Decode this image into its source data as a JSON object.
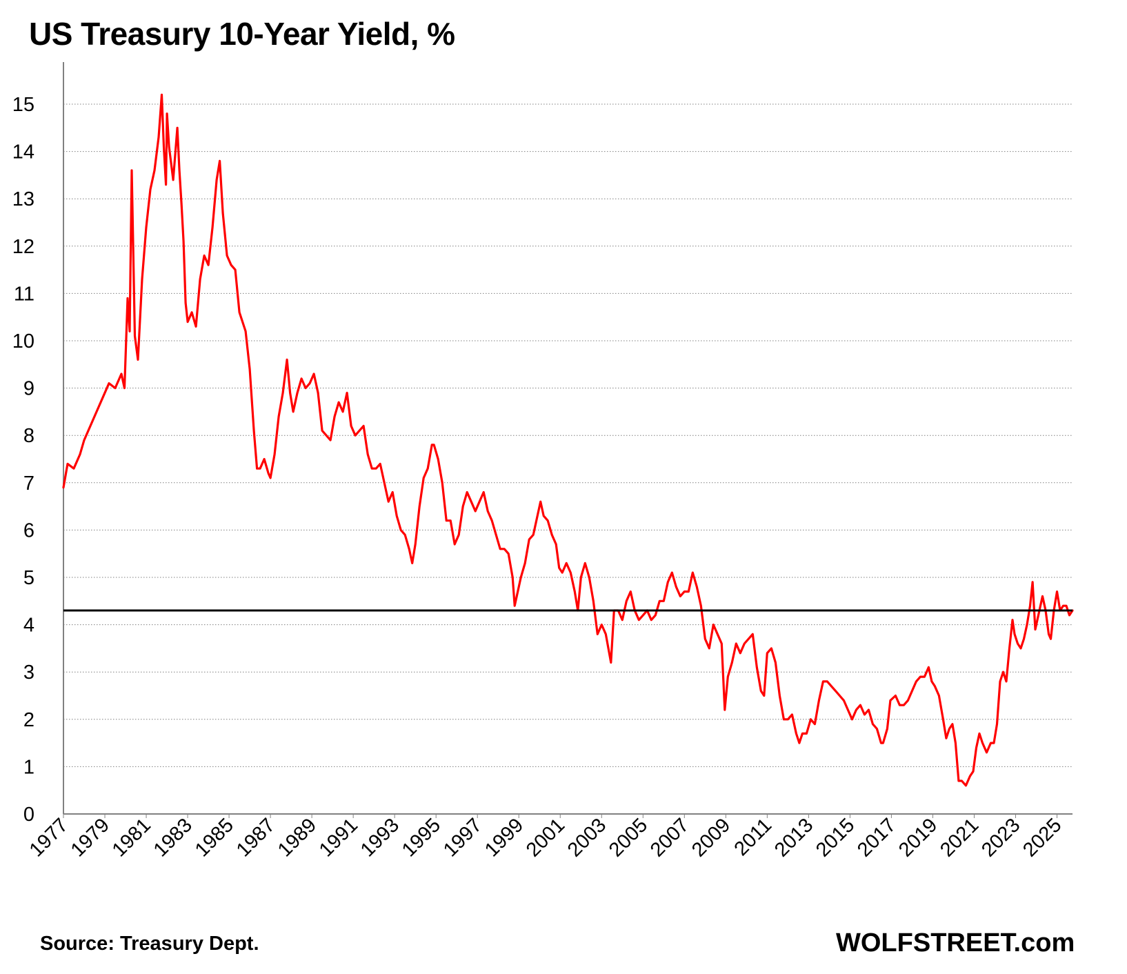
{
  "title": "US Treasury 10-Year Yield, %",
  "source": "Source: Treasury Dept.",
  "brand": "WOLFSTREET.com",
  "colors": {
    "series": "#ff0000",
    "reference_line": "#000000",
    "grid": "#7f7f7f",
    "axis": "#808080"
  },
  "chart_data": {
    "type": "line",
    "title": "US Treasury 10-Year Yield, %",
    "xlabel": "",
    "ylabel": "",
    "xlim": [
      1977,
      2025.75
    ],
    "ylim": [
      0,
      15.8
    ],
    "y_ticks": [
      0,
      1,
      2,
      3,
      4,
      5,
      6,
      7,
      8,
      9,
      10,
      11,
      12,
      13,
      14,
      15
    ],
    "x_ticks": [
      1977,
      1979,
      1981,
      1983,
      1985,
      1987,
      1989,
      1991,
      1993,
      1995,
      1997,
      1999,
      2001,
      2003,
      2005,
      2007,
      2009,
      2011,
      2013,
      2015,
      2017,
      2019,
      2021,
      2023,
      2025
    ],
    "grid": "horizontal dotted",
    "legend": "none",
    "reference_line": {
      "value": 4.3
    },
    "series": [
      {
        "color": "#ff0000",
        "points": [
          [
            1977.0,
            6.9
          ],
          [
            1977.2,
            7.4
          ],
          [
            1977.5,
            7.3
          ],
          [
            1977.8,
            7.6
          ],
          [
            1978.0,
            7.9
          ],
          [
            1978.3,
            8.2
          ],
          [
            1978.6,
            8.5
          ],
          [
            1978.9,
            8.8
          ],
          [
            1979.2,
            9.1
          ],
          [
            1979.5,
            9.0
          ],
          [
            1979.8,
            9.3
          ],
          [
            1979.95,
            9.0
          ],
          [
            1980.1,
            10.9
          ],
          [
            1980.2,
            10.2
          ],
          [
            1980.3,
            13.6
          ],
          [
            1980.45,
            10.1
          ],
          [
            1980.6,
            9.6
          ],
          [
            1980.8,
            11.3
          ],
          [
            1981.0,
            12.4
          ],
          [
            1981.2,
            13.2
          ],
          [
            1981.4,
            13.6
          ],
          [
            1981.6,
            14.3
          ],
          [
            1981.75,
            15.2
          ],
          [
            1981.85,
            14.1
          ],
          [
            1981.95,
            13.3
          ],
          [
            1982.0,
            14.8
          ],
          [
            1982.1,
            14.1
          ],
          [
            1982.3,
            13.4
          ],
          [
            1982.5,
            14.5
          ],
          [
            1982.6,
            13.6
          ],
          [
            1982.7,
            12.9
          ],
          [
            1982.8,
            12.1
          ],
          [
            1982.9,
            10.8
          ],
          [
            1983.0,
            10.4
          ],
          [
            1983.2,
            10.6
          ],
          [
            1983.4,
            10.3
          ],
          [
            1983.6,
            11.3
          ],
          [
            1983.8,
            11.8
          ],
          [
            1984.0,
            11.6
          ],
          [
            1984.2,
            12.4
          ],
          [
            1984.4,
            13.4
          ],
          [
            1984.55,
            13.8
          ],
          [
            1984.7,
            12.7
          ],
          [
            1984.9,
            11.8
          ],
          [
            1985.1,
            11.6
          ],
          [
            1985.3,
            11.5
          ],
          [
            1985.5,
            10.6
          ],
          [
            1985.8,
            10.2
          ],
          [
            1986.0,
            9.4
          ],
          [
            1986.2,
            8.1
          ],
          [
            1986.35,
            7.3
          ],
          [
            1986.5,
            7.3
          ],
          [
            1986.7,
            7.5
          ],
          [
            1986.9,
            7.2
          ],
          [
            1987.0,
            7.1
          ],
          [
            1987.2,
            7.6
          ],
          [
            1987.4,
            8.4
          ],
          [
            1987.6,
            8.9
          ],
          [
            1987.8,
            9.6
          ],
          [
            1987.95,
            8.9
          ],
          [
            1988.1,
            8.5
          ],
          [
            1988.3,
            8.9
          ],
          [
            1988.5,
            9.2
          ],
          [
            1988.7,
            9.0
          ],
          [
            1988.9,
            9.1
          ],
          [
            1989.1,
            9.3
          ],
          [
            1989.3,
            8.9
          ],
          [
            1989.5,
            8.1
          ],
          [
            1989.7,
            8.0
          ],
          [
            1989.9,
            7.9
          ],
          [
            1990.1,
            8.4
          ],
          [
            1990.3,
            8.7
          ],
          [
            1990.5,
            8.5
          ],
          [
            1990.7,
            8.9
          ],
          [
            1990.9,
            8.2
          ],
          [
            1991.1,
            8.0
          ],
          [
            1991.3,
            8.1
          ],
          [
            1991.5,
            8.2
          ],
          [
            1991.7,
            7.6
          ],
          [
            1991.9,
            7.3
          ],
          [
            1992.1,
            7.3
          ],
          [
            1992.3,
            7.4
          ],
          [
            1992.5,
            7.0
          ],
          [
            1992.7,
            6.6
          ],
          [
            1992.9,
            6.8
          ],
          [
            1993.1,
            6.3
          ],
          [
            1993.3,
            6.0
          ],
          [
            1993.5,
            5.9
          ],
          [
            1993.7,
            5.6
          ],
          [
            1993.85,
            5.3
          ],
          [
            1994.0,
            5.7
          ],
          [
            1994.2,
            6.5
          ],
          [
            1994.4,
            7.1
          ],
          [
            1994.6,
            7.3
          ],
          [
            1994.8,
            7.8
          ],
          [
            1994.9,
            7.8
          ],
          [
            1995.1,
            7.5
          ],
          [
            1995.3,
            7.0
          ],
          [
            1995.5,
            6.2
          ],
          [
            1995.7,
            6.2
          ],
          [
            1995.9,
            5.7
          ],
          [
            1996.1,
            5.9
          ],
          [
            1996.3,
            6.5
          ],
          [
            1996.5,
            6.8
          ],
          [
            1996.7,
            6.6
          ],
          [
            1996.9,
            6.4
          ],
          [
            1997.1,
            6.6
          ],
          [
            1997.3,
            6.8
          ],
          [
            1997.5,
            6.4
          ],
          [
            1997.7,
            6.2
          ],
          [
            1997.9,
            5.9
          ],
          [
            1998.1,
            5.6
          ],
          [
            1998.3,
            5.6
          ],
          [
            1998.5,
            5.5
          ],
          [
            1998.7,
            5.0
          ],
          [
            1998.8,
            4.4
          ],
          [
            1998.95,
            4.7
          ],
          [
            1999.1,
            5.0
          ],
          [
            1999.3,
            5.3
          ],
          [
            1999.5,
            5.8
          ],
          [
            1999.7,
            5.9
          ],
          [
            1999.9,
            6.3
          ],
          [
            2000.05,
            6.6
          ],
          [
            2000.2,
            6.3
          ],
          [
            2000.4,
            6.2
          ],
          [
            2000.6,
            5.9
          ],
          [
            2000.8,
            5.7
          ],
          [
            2000.95,
            5.2
          ],
          [
            2001.1,
            5.1
          ],
          [
            2001.3,
            5.3
          ],
          [
            2001.5,
            5.1
          ],
          [
            2001.7,
            4.7
          ],
          [
            2001.85,
            4.3
          ],
          [
            2002.0,
            5.0
          ],
          [
            2002.2,
            5.3
          ],
          [
            2002.4,
            5.0
          ],
          [
            2002.6,
            4.5
          ],
          [
            2002.8,
            3.8
          ],
          [
            2003.0,
            4.0
          ],
          [
            2003.2,
            3.8
          ],
          [
            2003.45,
            3.2
          ],
          [
            2003.6,
            4.3
          ],
          [
            2003.8,
            4.3
          ],
          [
            2004.0,
            4.1
          ],
          [
            2004.2,
            4.5
          ],
          [
            2004.4,
            4.7
          ],
          [
            2004.6,
            4.3
          ],
          [
            2004.8,
            4.1
          ],
          [
            2005.0,
            4.2
          ],
          [
            2005.2,
            4.3
          ],
          [
            2005.4,
            4.1
          ],
          [
            2005.6,
            4.2
          ],
          [
            2005.8,
            4.5
          ],
          [
            2006.0,
            4.5
          ],
          [
            2006.2,
            4.9
          ],
          [
            2006.4,
            5.1
          ],
          [
            2006.6,
            4.8
          ],
          [
            2006.8,
            4.6
          ],
          [
            2007.0,
            4.7
          ],
          [
            2007.2,
            4.7
          ],
          [
            2007.4,
            5.1
          ],
          [
            2007.6,
            4.8
          ],
          [
            2007.8,
            4.4
          ],
          [
            2008.0,
            3.7
          ],
          [
            2008.2,
            3.5
          ],
          [
            2008.4,
            4.0
          ],
          [
            2008.6,
            3.8
          ],
          [
            2008.8,
            3.6
          ],
          [
            2008.95,
            2.2
          ],
          [
            2009.1,
            2.9
          ],
          [
            2009.3,
            3.2
          ],
          [
            2009.5,
            3.6
          ],
          [
            2009.7,
            3.4
          ],
          [
            2009.9,
            3.6
          ],
          [
            2010.1,
            3.7
          ],
          [
            2010.3,
            3.8
          ],
          [
            2010.5,
            3.1
          ],
          [
            2010.7,
            2.6
          ],
          [
            2010.85,
            2.5
          ],
          [
            2011.0,
            3.4
          ],
          [
            2011.2,
            3.5
          ],
          [
            2011.4,
            3.2
          ],
          [
            2011.6,
            2.5
          ],
          [
            2011.8,
            2.0
          ],
          [
            2012.0,
            2.0
          ],
          [
            2012.2,
            2.1
          ],
          [
            2012.4,
            1.7
          ],
          [
            2012.55,
            1.5
          ],
          [
            2012.7,
            1.7
          ],
          [
            2012.9,
            1.7
          ],
          [
            2013.1,
            2.0
          ],
          [
            2013.3,
            1.9
          ],
          [
            2013.5,
            2.4
          ],
          [
            2013.7,
            2.8
          ],
          [
            2013.9,
            2.8
          ],
          [
            2014.1,
            2.7
          ],
          [
            2014.3,
            2.6
          ],
          [
            2014.5,
            2.5
          ],
          [
            2014.7,
            2.4
          ],
          [
            2014.9,
            2.2
          ],
          [
            2015.1,
            2.0
          ],
          [
            2015.3,
            2.2
          ],
          [
            2015.5,
            2.3
          ],
          [
            2015.7,
            2.1
          ],
          [
            2015.9,
            2.2
          ],
          [
            2016.1,
            1.9
          ],
          [
            2016.3,
            1.8
          ],
          [
            2016.5,
            1.5
          ],
          [
            2016.6,
            1.5
          ],
          [
            2016.8,
            1.8
          ],
          [
            2016.95,
            2.4
          ],
          [
            2017.2,
            2.5
          ],
          [
            2017.4,
            2.3
          ],
          [
            2017.6,
            2.3
          ],
          [
            2017.8,
            2.4
          ],
          [
            2018.0,
            2.6
          ],
          [
            2018.2,
            2.8
          ],
          [
            2018.4,
            2.9
          ],
          [
            2018.6,
            2.9
          ],
          [
            2018.8,
            3.1
          ],
          [
            2018.95,
            2.8
          ],
          [
            2019.1,
            2.7
          ],
          [
            2019.3,
            2.5
          ],
          [
            2019.5,
            2.0
          ],
          [
            2019.65,
            1.6
          ],
          [
            2019.8,
            1.8
          ],
          [
            2019.95,
            1.9
          ],
          [
            2020.1,
            1.5
          ],
          [
            2020.25,
            0.7
          ],
          [
            2020.4,
            0.7
          ],
          [
            2020.6,
            0.6
          ],
          [
            2020.8,
            0.8
          ],
          [
            2020.95,
            0.9
          ],
          [
            2021.1,
            1.4
          ],
          [
            2021.25,
            1.7
          ],
          [
            2021.4,
            1.5
          ],
          [
            2021.6,
            1.3
          ],
          [
            2021.8,
            1.5
          ],
          [
            2021.95,
            1.5
          ],
          [
            2022.1,
            1.9
          ],
          [
            2022.25,
            2.8
          ],
          [
            2022.4,
            3.0
          ],
          [
            2022.55,
            2.8
          ],
          [
            2022.7,
            3.5
          ],
          [
            2022.85,
            4.1
          ],
          [
            2022.95,
            3.8
          ],
          [
            2023.1,
            3.6
          ],
          [
            2023.25,
            3.5
          ],
          [
            2023.4,
            3.7
          ],
          [
            2023.55,
            4.0
          ],
          [
            2023.7,
            4.4
          ],
          [
            2023.82,
            4.9
          ],
          [
            2023.95,
            3.9
          ],
          [
            2024.1,
            4.2
          ],
          [
            2024.3,
            4.6
          ],
          [
            2024.45,
            4.3
          ],
          [
            2024.6,
            3.8
          ],
          [
            2024.7,
            3.7
          ],
          [
            2024.85,
            4.3
          ],
          [
            2025.0,
            4.7
          ],
          [
            2025.15,
            4.3
          ],
          [
            2025.3,
            4.4
          ],
          [
            2025.45,
            4.4
          ],
          [
            2025.6,
            4.2
          ],
          [
            2025.75,
            4.3
          ]
        ]
      }
    ]
  }
}
